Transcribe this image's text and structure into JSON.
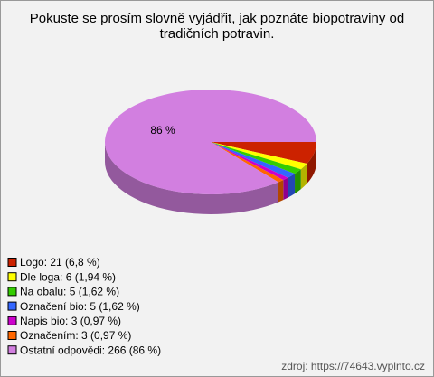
{
  "chart_data": {
    "type": "pie",
    "title": "Pokuste se prosím slovně vyjádřit, jak poznáte biopotraviny od tradičních potravin.",
    "categories": [
      "Logo",
      "Dle loga",
      "Na obalu",
      "Označení bio",
      "Napis bio",
      "Označením",
      "Ostatní odpovědi"
    ],
    "values": [
      6.8,
      1.94,
      1.62,
      1.62,
      0.97,
      0.97,
      86
    ],
    "value_labels": [
      null,
      null,
      null,
      null,
      null,
      null,
      "86 %"
    ],
    "legend_labels": [
      "Logo: 21 (6,8 %)",
      "Dle loga: 6 (1,94 %)",
      "Na obalu: 5 (1,62 %)",
      "Označení bio: 5 (1,62 %)",
      "Napis bio: 3 (0,97 %)",
      "Označením: 3 (0,97 %)",
      "Ostatní odpovědi: 266 (86 %)"
    ],
    "colors": [
      "#cc2200",
      "#ffff00",
      "#33cc00",
      "#3366ff",
      "#cc00cc",
      "#ff6600",
      "#d27fe0"
    ],
    "source": "zdroj: https://74643.vyplnto.cz"
  }
}
